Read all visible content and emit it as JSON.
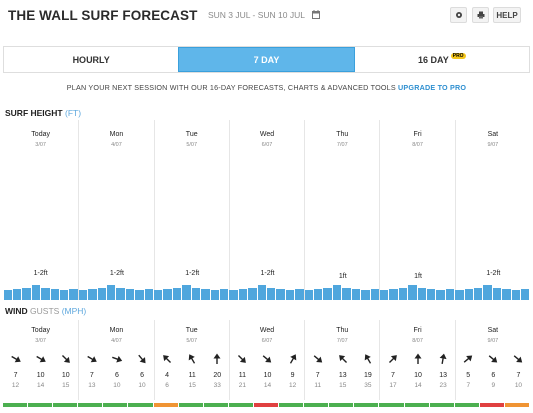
{
  "header": {
    "title": "THE WALL SURF FORECAST",
    "date_range": "SUN 3 JUL - SUN 10 JUL",
    "help_label": "HELP",
    "settings_icon": "gear-icon",
    "print_icon": "print-icon",
    "calendar_icon": "calendar-icon"
  },
  "tabs": [
    {
      "label": "HOURLY",
      "active": false
    },
    {
      "label": "7 DAY",
      "active": true
    },
    {
      "label": "16 DAY",
      "active": false,
      "badge": "PRO"
    }
  ],
  "promo": {
    "text": "PLAN YOUR NEXT SESSION WITH OUR 16-DAY FORECASTS, CHARTS & ADVANCED TOOLS",
    "link": "UPGRADE TO PRO"
  },
  "surf": {
    "label": "SURF HEIGHT",
    "unit": "(FT)",
    "bar_color": "#4fa6dd",
    "days": [
      {
        "name": "Today",
        "date": "3/07",
        "height": "1-2ft"
      },
      {
        "name": "Mon",
        "date": "4/07",
        "height": "1-2ft"
      },
      {
        "name": "Tue",
        "date": "5/07",
        "height": "1-2ft"
      },
      {
        "name": "Wed",
        "date": "6/07",
        "height": "1-2ft"
      },
      {
        "name": "Thu",
        "date": "7/07",
        "height": "1ft"
      },
      {
        "name": "Fri",
        "date": "8/07",
        "height": "1ft"
      },
      {
        "name": "Sat",
        "date": "9/07",
        "height": "1-2ft"
      }
    ]
  },
  "wind": {
    "label": "WIND",
    "gusts_label": "GUSTS",
    "unit": "(MPH)",
    "days": [
      {
        "name": "Today",
        "date": "3/07",
        "cells": [
          {
            "dir": 120,
            "speed": "7",
            "gust": "12"
          },
          {
            "dir": 120,
            "speed": "10",
            "gust": "14"
          },
          {
            "dir": 135,
            "speed": "10",
            "gust": "15"
          }
        ]
      },
      {
        "name": "Mon",
        "date": "4/07",
        "cells": [
          {
            "dir": 120,
            "speed": "7",
            "gust": "13"
          },
          {
            "dir": 110,
            "speed": "6",
            "gust": "10"
          },
          {
            "dir": 140,
            "speed": "6",
            "gust": "10"
          }
        ]
      },
      {
        "name": "Tue",
        "date": "5/07",
        "cells": [
          {
            "dir": 315,
            "speed": "4",
            "gust": "6"
          },
          {
            "dir": 330,
            "speed": "11",
            "gust": "15"
          },
          {
            "dir": 0,
            "speed": "20",
            "gust": "33"
          }
        ]
      },
      {
        "name": "Wed",
        "date": "6/07",
        "cells": [
          {
            "dir": 135,
            "speed": "11",
            "gust": "21"
          },
          {
            "dir": 130,
            "speed": "10",
            "gust": "14"
          },
          {
            "dir": 30,
            "speed": "9",
            "gust": "12"
          }
        ]
      },
      {
        "name": "Thu",
        "date": "7/07",
        "cells": [
          {
            "dir": 130,
            "speed": "7",
            "gust": "11"
          },
          {
            "dir": 315,
            "speed": "13",
            "gust": "15"
          },
          {
            "dir": 330,
            "speed": "19",
            "gust": "35"
          }
        ]
      },
      {
        "name": "Fri",
        "date": "8/07",
        "cells": [
          {
            "dir": 45,
            "speed": "7",
            "gust": "17"
          },
          {
            "dir": 0,
            "speed": "10",
            "gust": "14"
          },
          {
            "dir": 10,
            "speed": "13",
            "gust": "23"
          }
        ]
      },
      {
        "name": "Sat",
        "date": "9/07",
        "cells": [
          {
            "dir": 50,
            "speed": "5",
            "gust": "7"
          },
          {
            "dir": 130,
            "speed": "6",
            "gust": "9"
          },
          {
            "dir": 130,
            "speed": "7",
            "gust": "10"
          }
        ]
      }
    ]
  },
  "ratings": {
    "good": "#4caf50",
    "fair": "#f09433",
    "poor": "#e04040",
    "segments": [
      "good",
      "good",
      "good",
      "good",
      "good",
      "good",
      "fair",
      "good",
      "good",
      "good",
      "poor",
      "good",
      "good",
      "good",
      "good",
      "good",
      "good",
      "good",
      "good",
      "poor",
      "fair"
    ]
  }
}
